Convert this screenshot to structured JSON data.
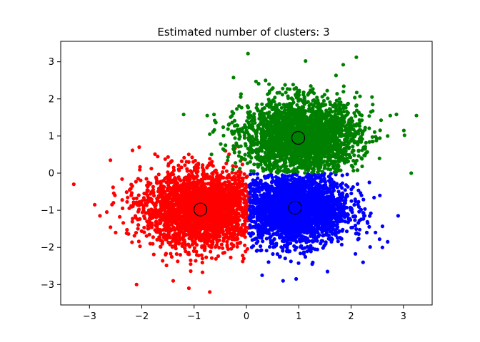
{
  "chart_data": {
    "type": "scatter",
    "title": "Estimated number of clusters: 3",
    "xlabel": "",
    "ylabel": "",
    "xlim": [
      -3.55,
      3.55
    ],
    "ylim": [
      -3.55,
      3.55
    ],
    "grid": false,
    "x_ticks": [
      -3,
      -2,
      -1,
      0,
      1,
      2,
      3
    ],
    "y_ticks": [
      -3,
      -2,
      -1,
      0,
      1,
      2,
      3
    ],
    "x_tick_labels": [
      "−3",
      "−2",
      "−1",
      "0",
      "1",
      "2",
      "3"
    ],
    "y_tick_labels": [
      "−3",
      "−2",
      "−1",
      "0",
      "1",
      "2",
      "3"
    ],
    "series": [
      {
        "color": "#ff0000",
        "region": "x < 0.05",
        "center": [
          -0.88,
          -0.98
        ],
        "spread": [
          0.55,
          0.5
        ],
        "points": [
          [
            -3.3,
            -0.3
          ],
          [
            -2.9,
            -0.85
          ],
          [
            -2.8,
            -1.15
          ],
          [
            -2.6,
            0.35
          ],
          [
            -2.5,
            -1.6
          ],
          [
            -2.1,
            -3.0
          ],
          [
            -2.05,
            0.7
          ],
          [
            -1.4,
            -2.9
          ],
          [
            -1.1,
            -3.1
          ],
          [
            -0.7,
            -3.2
          ],
          [
            -0.4,
            0.6
          ],
          [
            -0.05,
            -2.3
          ]
        ],
        "center_marker": [
          -0.88,
          -0.98
        ]
      },
      {
        "color": "#0000ff",
        "region": "x > 0.05, y < 0",
        "center": [
          0.95,
          -0.95
        ],
        "spread": [
          0.5,
          0.48
        ],
        "points": [
          [
            2.35,
            -0.25
          ],
          [
            2.55,
            -0.6
          ],
          [
            2.9,
            -1.15
          ],
          [
            2.7,
            -1.85
          ],
          [
            2.6,
            -2.0
          ],
          [
            0.7,
            -2.9
          ],
          [
            0.95,
            -2.85
          ],
          [
            1.55,
            -2.65
          ],
          [
            0.3,
            -2.75
          ],
          [
            2.3,
            -1.6
          ]
        ],
        "center_marker": [
          0.93,
          -0.93
        ]
      },
      {
        "color": "#008000",
        "region": "y > 0",
        "center": [
          1.05,
          0.98
        ],
        "spread": [
          0.55,
          0.5
        ],
        "points": [
          [
            0.03,
            3.22
          ],
          [
            1.13,
            3.02
          ],
          [
            1.85,
            2.92
          ],
          [
            3.25,
            1.55
          ],
          [
            3.15,
            0.0
          ],
          [
            -1.2,
            1.58
          ],
          [
            -0.75,
            1.55
          ],
          [
            2.7,
            1.0
          ],
          [
            -0.7,
            1.05
          ],
          [
            2.75,
            1.55
          ],
          [
            2.4,
            2.05
          ],
          [
            -0.4,
            0.75
          ]
        ],
        "center_marker": [
          0.99,
          0.95
        ]
      }
    ]
  }
}
